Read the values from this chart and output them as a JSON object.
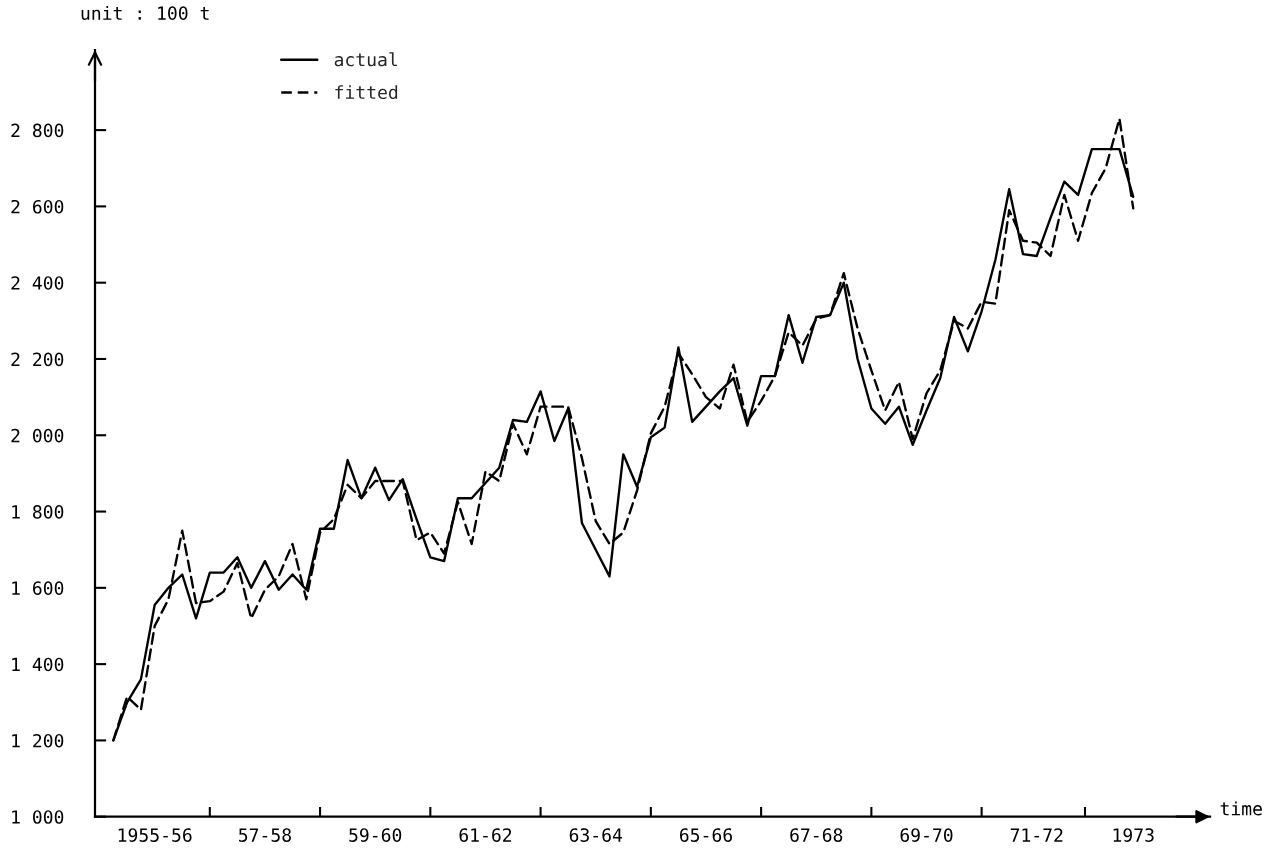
{
  "chart_data": {
    "type": "line",
    "xlabel": "time",
    "ylabel": "unit : 100 t",
    "legend": "top left",
    "grid": false,
    "ylim": [
      1000,
      3010
    ],
    "yticks": [
      {
        "value": 1000,
        "label": "1 000"
      },
      {
        "value": 1200,
        "label": "1 200"
      },
      {
        "value": 1400,
        "label": "1 400"
      },
      {
        "value": 1600,
        "label": "1 600"
      },
      {
        "value": 1800,
        "label": "1 800"
      },
      {
        "value": 2000,
        "label": "2 000"
      },
      {
        "value": 2200,
        "label": "2 200"
      },
      {
        "value": 2400,
        "label": "2 400"
      },
      {
        "value": 2600,
        "label": "2 600"
      },
      {
        "value": 2800,
        "label": "2 800"
      }
    ],
    "categories": [
      null,
      null,
      null,
      "1955-56",
      null,
      null,
      null,
      null,
      null,
      null,
      null,
      "57-58",
      null,
      null,
      null,
      null,
      null,
      null,
      null,
      "59-60",
      null,
      null,
      null,
      null,
      null,
      null,
      null,
      "61-62",
      null,
      null,
      null,
      null,
      null,
      null,
      null,
      "63-64",
      null,
      null,
      null,
      null,
      null,
      null,
      null,
      "65-66",
      null,
      null,
      null,
      null,
      null,
      null,
      null,
      "67-68",
      null,
      null,
      null,
      null,
      null,
      null,
      null,
      "69-70",
      null,
      null,
      null,
      null,
      null,
      null,
      null,
      "71-72",
      null,
      null,
      null,
      null,
      null,
      null,
      "1973"
    ],
    "series": [
      {
        "name": "actual",
        "color": "#000000",
        "line_style": "solid",
        "values": [
          1200,
          1300,
          1360,
          1555,
          1600,
          1635,
          1520,
          1640,
          1640,
          1680,
          1600,
          1670,
          1595,
          1635,
          1595,
          1755,
          1755,
          1935,
          1835,
          1915,
          1830,
          1885,
          1780,
          1680,
          1670,
          1835,
          1835,
          1875,
          1915,
          2040,
          2035,
          2115,
          1985,
          2070,
          1770,
          1700,
          1630,
          1950,
          1865,
          1995,
          2020,
          2230,
          2035,
          2075,
          2115,
          2150,
          2025,
          2155,
          2155,
          2315,
          2190,
          2310,
          2315,
          2400,
          2200,
          2070,
          2030,
          2075,
          1975,
          2065,
          2150,
          2310,
          2220,
          2325,
          2460,
          2645,
          2475,
          2470,
          2570,
          2665,
          2630,
          2750,
          2750,
          2750,
          2625
        ]
      },
      {
        "name": "fitted",
        "color": "#000000",
        "line_style": "dashed",
        "values": [
          1200,
          1315,
          1280,
          1500,
          1570,
          1750,
          1560,
          1565,
          1590,
          1665,
          1520,
          1595,
          1630,
          1715,
          1570,
          1745,
          1780,
          1870,
          1835,
          1880,
          1880,
          1880,
          1725,
          1745,
          1690,
          1825,
          1715,
          1905,
          1880,
          2030,
          1950,
          2075,
          2075,
          2075,
          1940,
          1775,
          1715,
          1745,
          1855,
          2005,
          2075,
          2215,
          2160,
          2100,
          2070,
          2185,
          2035,
          2090,
          2155,
          2270,
          2235,
          2305,
          2315,
          2425,
          2280,
          2170,
          2065,
          2140,
          1990,
          2110,
          2170,
          2300,
          2280,
          2350,
          2345,
          2590,
          2510,
          2505,
          2470,
          2630,
          2510,
          2635,
          2700,
          2830,
          2595
        ]
      }
    ]
  }
}
